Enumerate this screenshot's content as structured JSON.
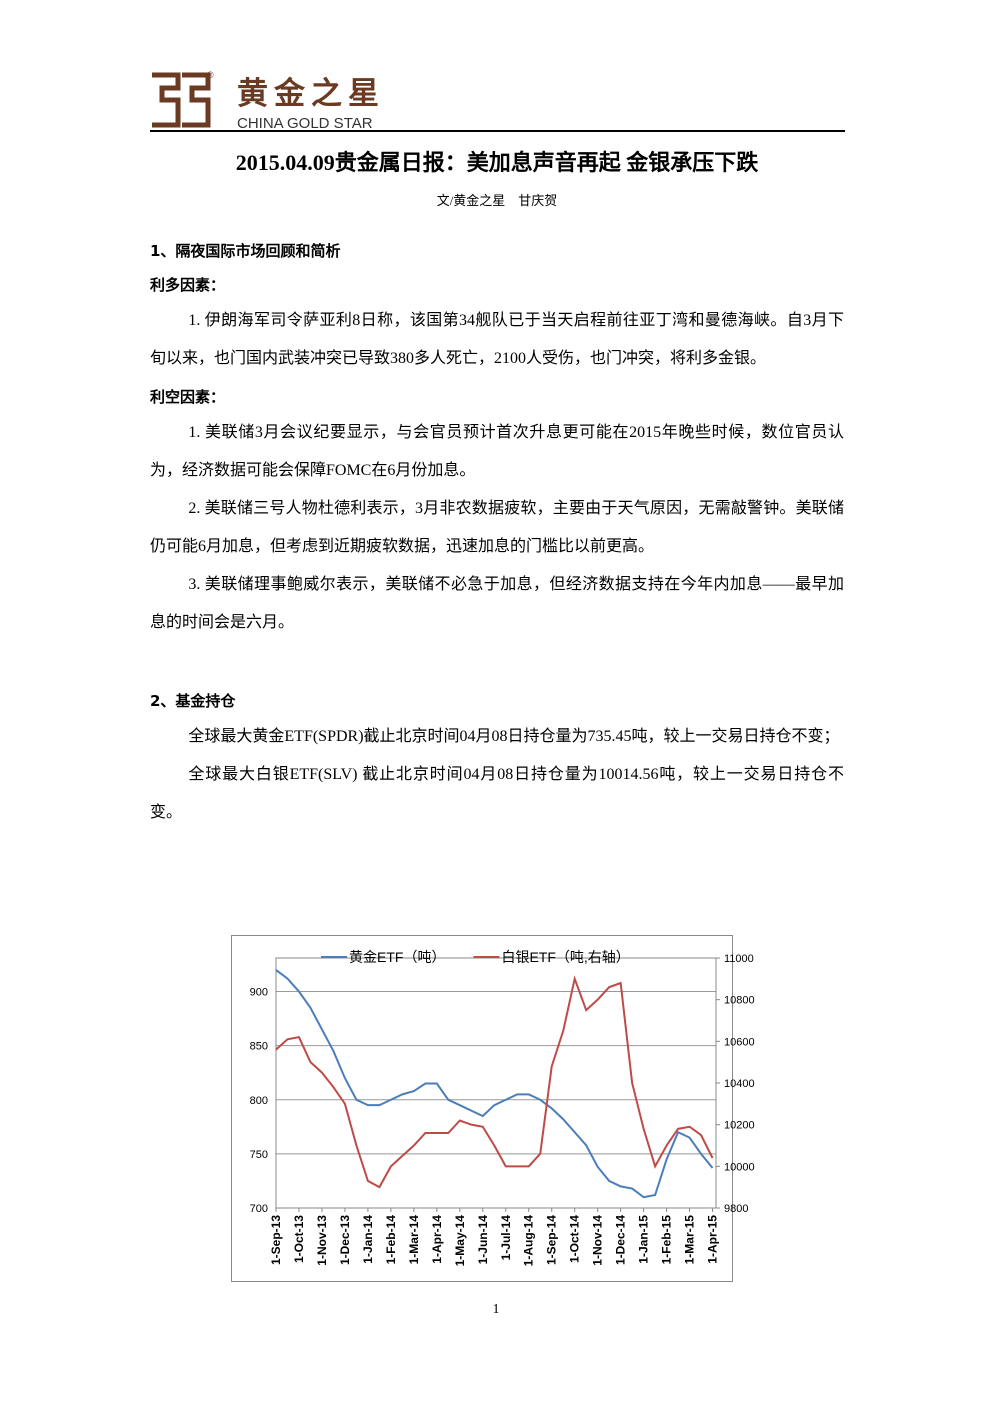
{
  "header": {
    "logo_cn": "黄金之星",
    "logo_en": "CHINA GOLD STAR",
    "registered": "®"
  },
  "title": "2015.04.09贵金属日报：美加息声音再起 金银承压下跌",
  "byline": "文/黄金之星　甘庆贺",
  "section1": {
    "heading": "1、隔夜国际市场回顾和简析",
    "bullish": {
      "label": "利多因素：",
      "items": [
        "1. 伊朗海军司令萨亚利8日称，该国第34舰队已于当天启程前往亚丁湾和曼德海峡。自3月下旬以来，也门国内武装冲突已导致380多人死亡，2100人受伤，也门冲突，将利多金银。"
      ]
    },
    "bearish": {
      "label": "利空因素：",
      "items": [
        "1. 美联储3月会议纪要显示，与会官员预计首次升息更可能在2015年晚些时候，数位官员认为，经济数据可能会保障FOMC在6月份加息。",
        "2. 美联储三号人物杜德利表示，3月非农数据疲软，主要由于天气原因，无需敲警钟。美联储仍可能6月加息，但考虑到近期疲软数据，迅速加息的门槛比以前更高。",
        "3. 美联储理事鲍威尔表示，美联储不必急于加息，但经济数据支持在今年内加息——最早加息的时间会是六月。"
      ]
    }
  },
  "section2": {
    "heading": "2、基金持仓",
    "paragraphs": [
      "全球最大黄金ETF(SPDR)截止北京时间04月08日持仓量为735.45吨，较上一交易日持仓不变；",
      "全球最大白银ETF(SLV) 截止北京时间04月08日持仓量为10014.56吨，较上一交易日持仓不变。"
    ]
  },
  "chart_data": {
    "type": "line",
    "x": [
      0,
      0.5,
      1,
      1.5,
      2,
      2.5,
      3,
      3.5,
      4,
      4.5,
      5,
      5.5,
      6,
      6.5,
      7,
      7.5,
      8,
      8.5,
      9,
      9.5,
      10,
      10.5,
      11,
      11.5,
      12,
      12.5,
      13,
      13.5,
      14,
      14.5,
      15,
      15.5,
      16,
      16.5,
      17,
      17.5,
      18,
      18.5,
      19
    ],
    "xlim": [
      0,
      19.15
    ],
    "xticks": [
      {
        "value": 0,
        "label": "1-Sep-13"
      },
      {
        "value": 1,
        "label": "1-Oct-13"
      },
      {
        "value": 2,
        "label": "1-Nov-13"
      },
      {
        "value": 3,
        "label": "1-Dec-13"
      },
      {
        "value": 4,
        "label": "1-Jan-14"
      },
      {
        "value": 5,
        "label": "1-Feb-14"
      },
      {
        "value": 6,
        "label": "1-Mar-14"
      },
      {
        "value": 7,
        "label": "1-Apr-14"
      },
      {
        "value": 8,
        "label": "1-May-14"
      },
      {
        "value": 9,
        "label": "1-Jun-14"
      },
      {
        "value": 10,
        "label": "1-Jul-14"
      },
      {
        "value": 11,
        "label": "1-Aug-14"
      },
      {
        "value": 12,
        "label": "1-Sep-14"
      },
      {
        "value": 13,
        "label": "1-Oct-14"
      },
      {
        "value": 14,
        "label": "1-Nov-14"
      },
      {
        "value": 15,
        "label": "1-Dec-14"
      },
      {
        "value": 16,
        "label": "1-Jan-15"
      },
      {
        "value": 17,
        "label": "1-Feb-15"
      },
      {
        "value": 18,
        "label": "1-Mar-15"
      },
      {
        "value": 19,
        "label": "1-Apr-15"
      }
    ],
    "ylim": [
      700,
      931
    ],
    "yticks": [
      700,
      750,
      800,
      850,
      900
    ],
    "y2lim": [
      9800,
      11000
    ],
    "y2ticks": [
      9800,
      10000,
      10200,
      10400,
      10600,
      10800,
      11000
    ],
    "series": [
      {
        "name": "黄金ETF（吨）",
        "color": "#4a7ebb",
        "values": [
          920,
          912,
          900,
          885,
          865,
          845,
          820,
          800,
          795,
          795,
          800,
          805,
          808,
          815,
          815,
          800,
          795,
          790,
          785,
          795,
          800,
          805,
          805,
          800,
          792,
          782,
          770,
          758,
          738,
          725,
          720,
          718,
          710,
          712,
          745,
          770,
          765,
          750,
          737
        ]
      },
      {
        "name": "白银ETF（吨,右轴）",
        "color": "#be4b48",
        "axis": "y2",
        "values": [
          10560,
          10610,
          10620,
          10500,
          10450,
          10380,
          10300,
          10100,
          9930,
          9900,
          10000,
          10050,
          10100,
          10160,
          10160,
          10160,
          10220,
          10200,
          10190,
          10100,
          10000,
          10000,
          10000,
          10060,
          10480,
          10650,
          10900,
          10750,
          10800,
          10860,
          10880,
          10400,
          10180,
          10000,
          10100,
          10180,
          10190,
          10150,
          10040
        ]
      }
    ]
  },
  "page_number": "1"
}
